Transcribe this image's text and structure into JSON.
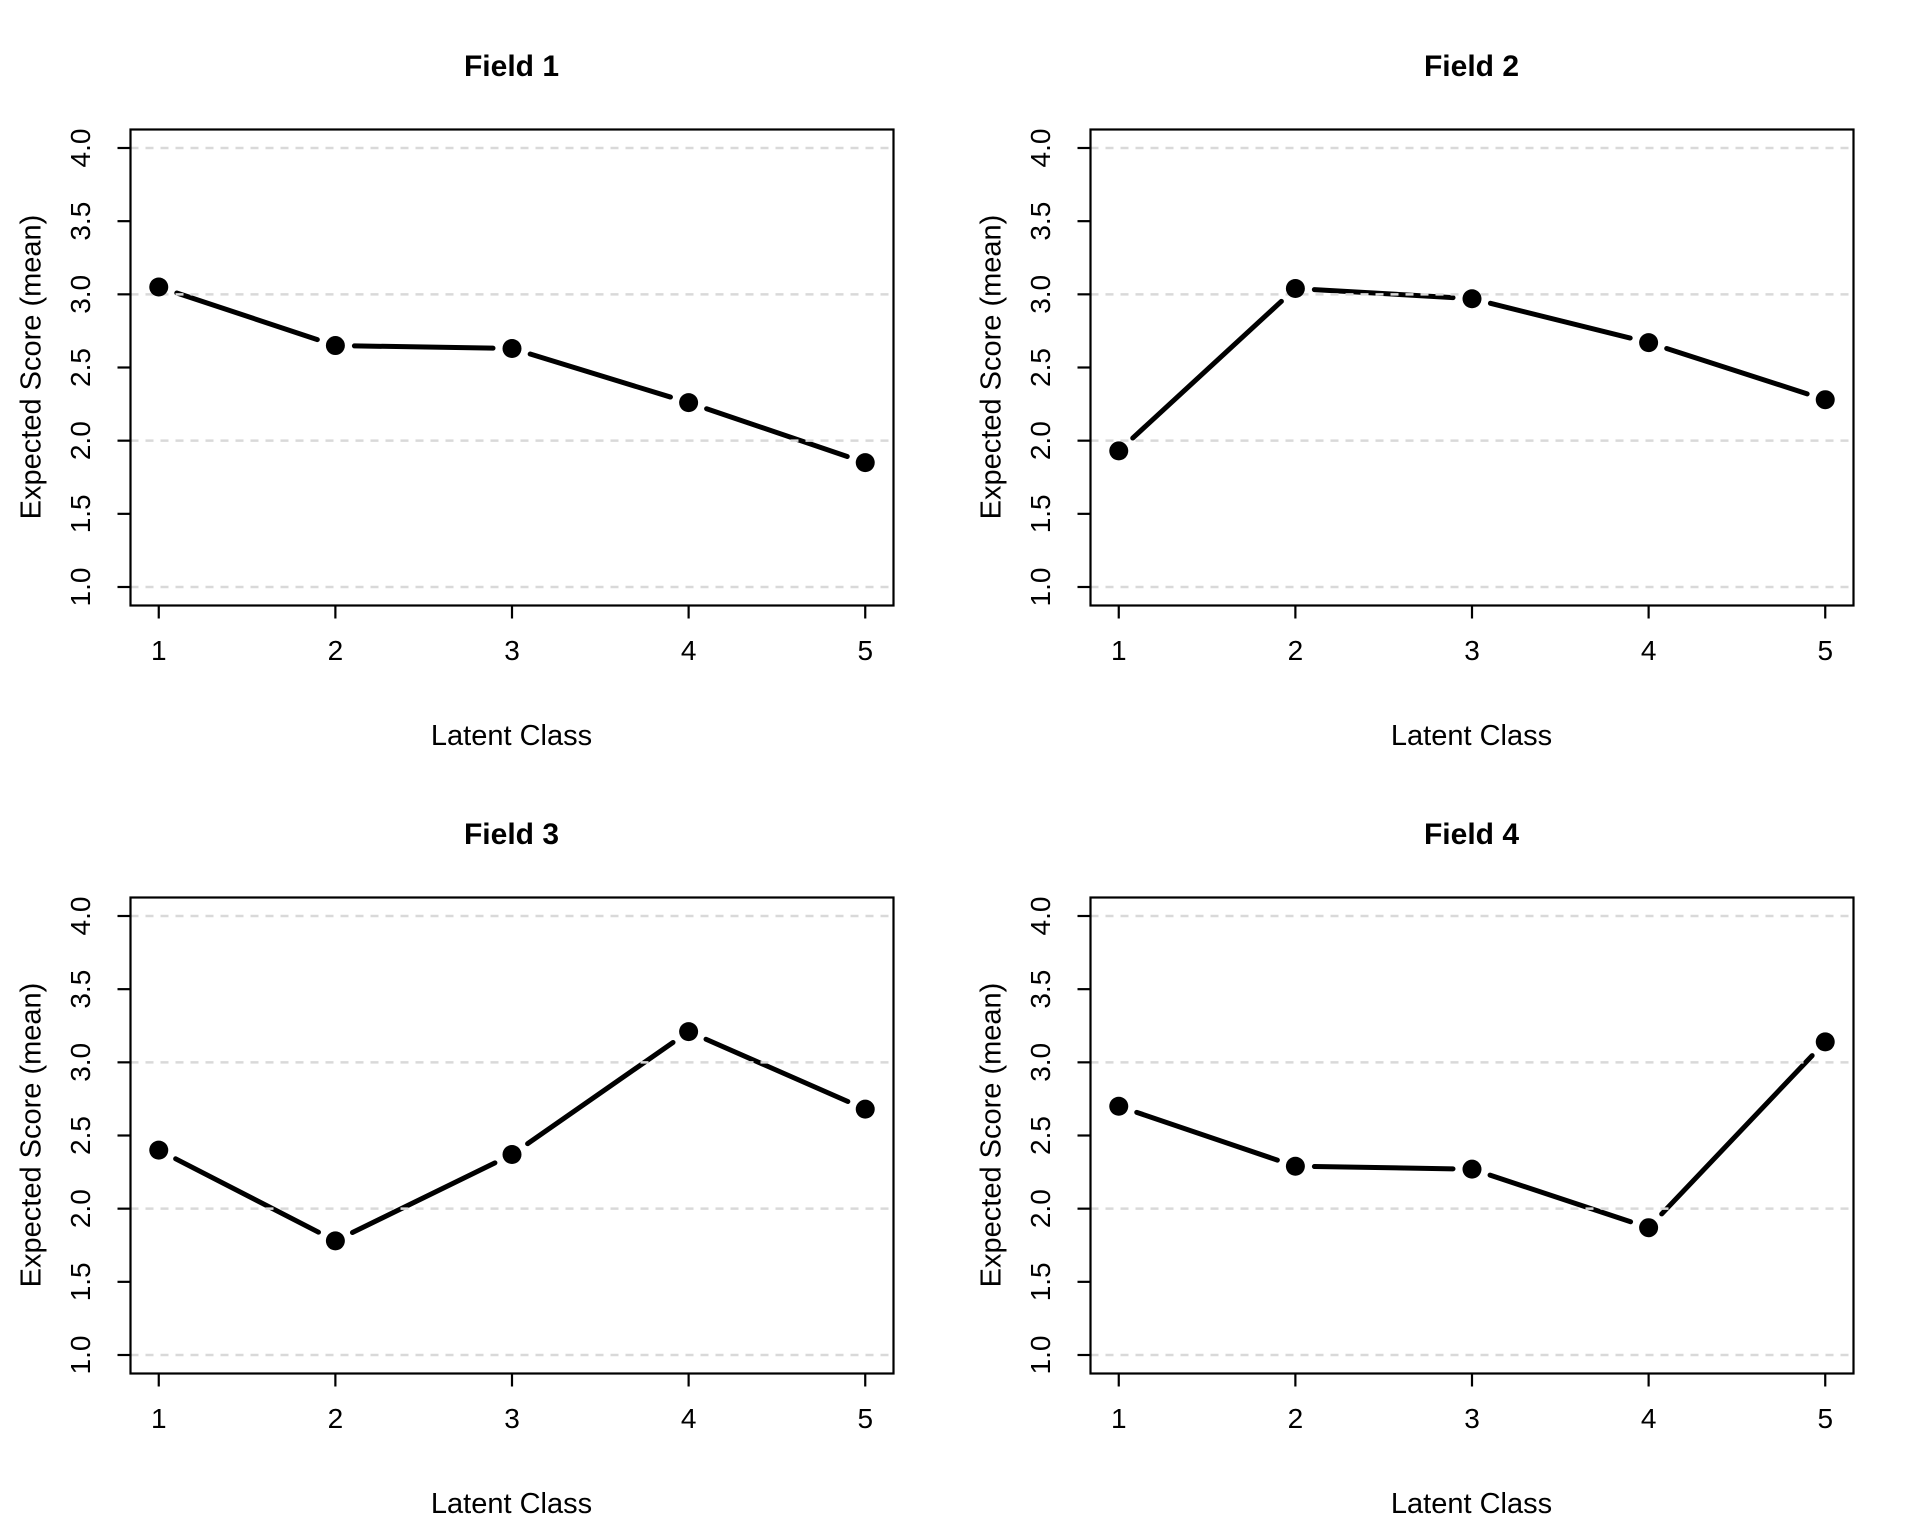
{
  "figure": {
    "layout": "2x2-panel-grid",
    "background": "#ffffff",
    "line_color": "#000000",
    "marker": "filled-circle",
    "grid_style": "horizontal-dashed",
    "grid_color": "#d9d9d9"
  },
  "chart_data": [
    {
      "type": "line",
      "title": "Field 1",
      "xlabel": "Latent Class",
      "ylabel": "Expected Score (mean)",
      "x": [
        1,
        2,
        3,
        4,
        5
      ],
      "values": [
        3.05,
        2.65,
        2.63,
        2.26,
        1.85
      ],
      "x_ticks": [
        "1",
        "2",
        "3",
        "4",
        "5"
      ],
      "y_ticks": [
        "1.0",
        "1.5",
        "2.0",
        "2.5",
        "3.0",
        "3.5",
        "4.0"
      ],
      "xlim": [
        1,
        5
      ],
      "ylim": [
        1.0,
        4.0
      ],
      "grid_y": [
        1.0,
        2.0,
        3.0,
        4.0
      ],
      "legend": "none"
    },
    {
      "type": "line",
      "title": "Field 2",
      "xlabel": "Latent Class",
      "ylabel": "Expected Score (mean)",
      "x": [
        1,
        2,
        3,
        4,
        5
      ],
      "values": [
        1.93,
        3.04,
        2.97,
        2.67,
        2.28
      ],
      "x_ticks": [
        "1",
        "2",
        "3",
        "4",
        "5"
      ],
      "y_ticks": [
        "1.0",
        "1.5",
        "2.0",
        "2.5",
        "3.0",
        "3.5",
        "4.0"
      ],
      "xlim": [
        1,
        5
      ],
      "ylim": [
        1.0,
        4.0
      ],
      "grid_y": [
        1.0,
        2.0,
        3.0,
        4.0
      ],
      "legend": "none"
    },
    {
      "type": "line",
      "title": "Field 3",
      "xlabel": "Latent Class",
      "ylabel": "Expected Score (mean)",
      "x": [
        1,
        2,
        3,
        4,
        5
      ],
      "values": [
        2.4,
        1.78,
        2.37,
        3.21,
        2.68
      ],
      "x_ticks": [
        "1",
        "2",
        "3",
        "4",
        "5"
      ],
      "y_ticks": [
        "1.0",
        "1.5",
        "2.0",
        "2.5",
        "3.0",
        "3.5",
        "4.0"
      ],
      "xlim": [
        1,
        5
      ],
      "ylim": [
        1.0,
        4.0
      ],
      "grid_y": [
        1.0,
        2.0,
        3.0,
        4.0
      ],
      "legend": "none"
    },
    {
      "type": "line",
      "title": "Field 4",
      "xlabel": "Latent Class",
      "ylabel": "Expected Score (mean)",
      "x": [
        1,
        2,
        3,
        4,
        5
      ],
      "values": [
        2.7,
        2.29,
        2.27,
        1.87,
        3.14
      ],
      "x_ticks": [
        "1",
        "2",
        "3",
        "4",
        "5"
      ],
      "y_ticks": [
        "1.0",
        "1.5",
        "2.0",
        "2.5",
        "3.0",
        "3.5",
        "4.0"
      ],
      "xlim": [
        1,
        5
      ],
      "ylim": [
        1.0,
        4.0
      ],
      "grid_y": [
        1.0,
        2.0,
        3.0,
        4.0
      ],
      "legend": "none"
    }
  ]
}
